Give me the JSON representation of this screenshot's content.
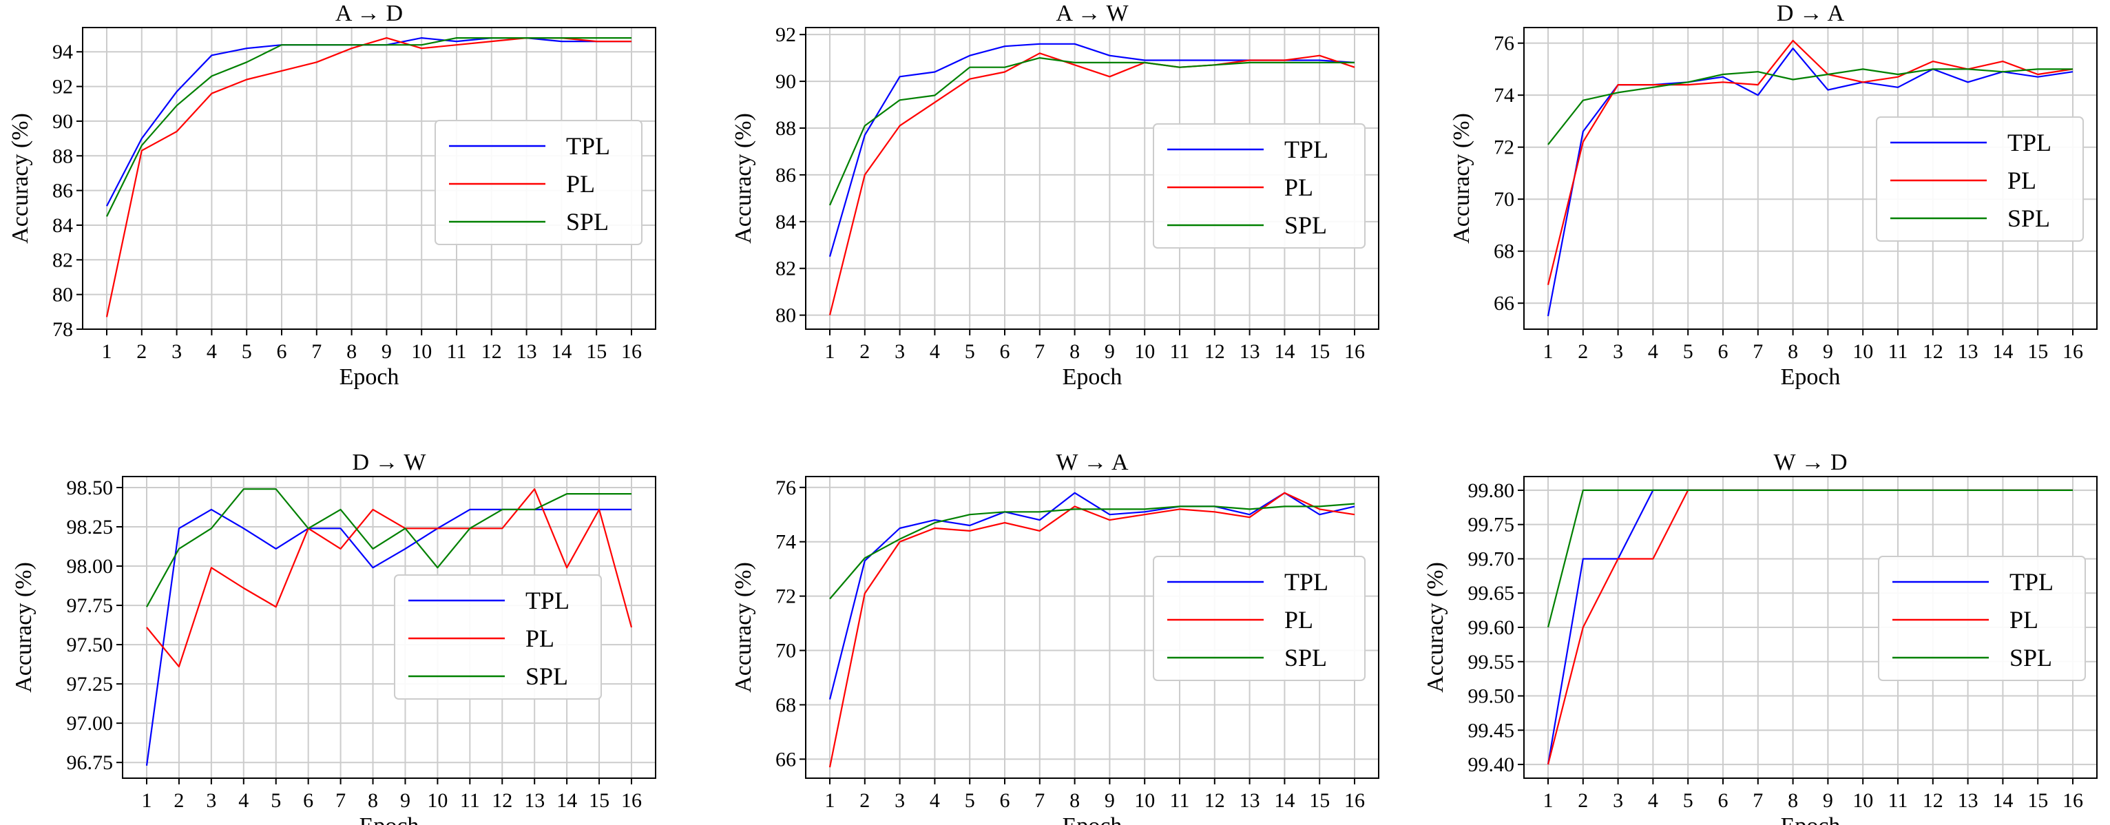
{
  "figure": {
    "series_colors": {
      "TPL": "#0000ff",
      "PL": "#ff0000",
      "SPL": "#008000"
    }
  },
  "chart_data": [
    {
      "type": "line",
      "title": "A → D",
      "xlabel": "Epoch",
      "ylabel": "Accuracy (%)",
      "x": [
        1,
        2,
        3,
        4,
        5,
        6,
        7,
        8,
        9,
        10,
        11,
        12,
        13,
        14,
        15,
        16
      ],
      "ylim": [
        78,
        95.4
      ],
      "yticks": [
        "78",
        "80",
        "82",
        "84",
        "86",
        "88",
        "90",
        "92",
        "94"
      ],
      "grid": true,
      "legend": [
        "TPL",
        "PL",
        "SPL"
      ],
      "series": [
        {
          "name": "TPL",
          "values": [
            85.1,
            89.0,
            91.7,
            93.8,
            94.2,
            94.4,
            94.4,
            94.4,
            94.4,
            94.8,
            94.6,
            94.8,
            94.8,
            94.6,
            94.6,
            94.6
          ]
        },
        {
          "name": "PL",
          "values": [
            78.7,
            88.3,
            89.4,
            91.6,
            92.4,
            92.9,
            93.4,
            94.2,
            94.8,
            94.2,
            94.4,
            94.6,
            94.8,
            94.8,
            94.6,
            94.6
          ]
        },
        {
          "name": "SPL",
          "values": [
            84.5,
            88.6,
            90.9,
            92.6,
            93.4,
            94.4,
            94.4,
            94.4,
            94.4,
            94.4,
            94.8,
            94.8,
            94.8,
            94.8,
            94.8,
            94.8
          ]
        }
      ]
    },
    {
      "type": "line",
      "title": "A → W",
      "xlabel": "Epoch",
      "ylabel": "Accuracy (%)",
      "x": [
        1,
        2,
        3,
        4,
        5,
        6,
        7,
        8,
        9,
        10,
        11,
        12,
        13,
        14,
        15,
        16
      ],
      "ylim": [
        79.4,
        92.3
      ],
      "yticks": [
        "80",
        "82",
        "84",
        "86",
        "88",
        "90",
        "92"
      ],
      "grid": true,
      "legend": [
        "TPL",
        "PL",
        "SPL"
      ],
      "series": [
        {
          "name": "TPL",
          "values": [
            82.5,
            87.7,
            90.2,
            90.4,
            91.1,
            91.5,
            91.6,
            91.6,
            91.1,
            90.9,
            90.9,
            90.9,
            90.9,
            90.9,
            90.9,
            90.8
          ]
        },
        {
          "name": "PL",
          "values": [
            80.0,
            86.0,
            88.1,
            89.1,
            90.1,
            90.4,
            91.2,
            90.7,
            90.2,
            90.8,
            90.6,
            90.7,
            90.9,
            90.9,
            91.1,
            90.6
          ]
        },
        {
          "name": "SPL",
          "values": [
            84.7,
            88.1,
            89.2,
            89.4,
            90.6,
            90.6,
            91.0,
            90.8,
            90.8,
            90.8,
            90.6,
            90.7,
            90.8,
            90.8,
            90.8,
            90.8
          ]
        }
      ]
    },
    {
      "type": "line",
      "title": "D → A",
      "xlabel": "Epoch",
      "ylabel": "Accuracy (%)",
      "x": [
        1,
        2,
        3,
        4,
        5,
        6,
        7,
        8,
        9,
        10,
        11,
        12,
        13,
        14,
        15,
        16
      ],
      "ylim": [
        65.0,
        76.6
      ],
      "yticks": [
        "66",
        "68",
        "70",
        "72",
        "74",
        "76"
      ],
      "grid": true,
      "legend": [
        "TPL",
        "PL",
        "SPL"
      ],
      "series": [
        {
          "name": "TPL",
          "values": [
            65.5,
            72.6,
            74.4,
            74.4,
            74.5,
            74.7,
            74.0,
            75.8,
            74.2,
            74.5,
            74.3,
            75.0,
            74.5,
            74.9,
            74.7,
            74.9
          ]
        },
        {
          "name": "PL",
          "values": [
            66.7,
            72.2,
            74.4,
            74.4,
            74.4,
            74.5,
            74.4,
            76.1,
            74.8,
            74.5,
            74.7,
            75.3,
            75.0,
            75.3,
            74.8,
            75.0
          ]
        },
        {
          "name": "SPL",
          "values": [
            72.1,
            73.8,
            74.1,
            74.3,
            74.5,
            74.8,
            74.9,
            74.6,
            74.8,
            75.0,
            74.8,
            75.0,
            75.0,
            74.9,
            75.0,
            75.0
          ]
        }
      ]
    },
    {
      "type": "line",
      "title": "D → W",
      "xlabel": "Epoch",
      "ylabel": "Accuracy (%)",
      "x": [
        1,
        2,
        3,
        4,
        5,
        6,
        7,
        8,
        9,
        10,
        11,
        12,
        13,
        14,
        15,
        16
      ],
      "ylim": [
        96.65,
        98.57
      ],
      "yticks": [
        "96.75",
        "97.00",
        "97.25",
        "97.50",
        "97.75",
        "98.00",
        "98.25",
        "98.50"
      ],
      "grid": true,
      "legend": [
        "TPL",
        "PL",
        "SPL"
      ],
      "series": [
        {
          "name": "TPL",
          "values": [
            96.73,
            98.24,
            98.36,
            98.24,
            98.11,
            98.24,
            98.24,
            97.99,
            98.11,
            98.24,
            98.36,
            98.36,
            98.36,
            98.36,
            98.36,
            98.36
          ]
        },
        {
          "name": "PL",
          "values": [
            97.61,
            97.36,
            97.99,
            97.86,
            97.74,
            98.24,
            98.11,
            98.36,
            98.24,
            98.24,
            98.24,
            98.24,
            98.49,
            97.99,
            98.36,
            97.61
          ]
        },
        {
          "name": "SPL",
          "values": [
            97.74,
            98.11,
            98.24,
            98.49,
            98.49,
            98.24,
            98.36,
            98.11,
            98.24,
            97.99,
            98.24,
            98.36,
            98.36,
            98.46,
            98.46,
            98.46
          ]
        }
      ]
    },
    {
      "type": "line",
      "title": "W → A",
      "xlabel": "Epoch",
      "ylabel": "Accuracy (%)",
      "x": [
        1,
        2,
        3,
        4,
        5,
        6,
        7,
        8,
        9,
        10,
        11,
        12,
        13,
        14,
        15,
        16
      ],
      "ylim": [
        65.3,
        76.4
      ],
      "yticks": [
        "66",
        "68",
        "70",
        "72",
        "74",
        "76"
      ],
      "grid": true,
      "legend": [
        "TPL",
        "PL",
        "SPL"
      ],
      "series": [
        {
          "name": "TPL",
          "values": [
            68.2,
            73.3,
            74.5,
            74.8,
            74.6,
            75.1,
            74.8,
            75.8,
            75.0,
            75.1,
            75.3,
            75.3,
            75.0,
            75.8,
            75.0,
            75.3
          ]
        },
        {
          "name": "PL",
          "values": [
            65.7,
            72.1,
            74.0,
            74.5,
            74.4,
            74.7,
            74.4,
            75.3,
            74.8,
            75.0,
            75.2,
            75.1,
            74.9,
            75.8,
            75.2,
            75.0
          ]
        },
        {
          "name": "SPL",
          "values": [
            71.9,
            73.4,
            74.1,
            74.7,
            75.0,
            75.1,
            75.1,
            75.2,
            75.2,
            75.2,
            75.3,
            75.3,
            75.2,
            75.3,
            75.3,
            75.4
          ]
        }
      ]
    },
    {
      "type": "line",
      "title": "W → D",
      "xlabel": "Epoch",
      "ylabel": "Accuracy (%)",
      "x": [
        1,
        2,
        3,
        4,
        5,
        6,
        7,
        8,
        9,
        10,
        11,
        12,
        13,
        14,
        15,
        16
      ],
      "ylim": [
        99.38,
        99.82
      ],
      "yticks": [
        "99.40",
        "99.45",
        "99.50",
        "99.55",
        "99.60",
        "99.65",
        "99.70",
        "99.75",
        "99.80"
      ],
      "grid": true,
      "legend": [
        "TPL",
        "PL",
        "SPL"
      ],
      "series": [
        {
          "name": "TPL",
          "values": [
            99.4,
            99.7,
            99.7,
            99.8,
            99.8,
            99.8,
            99.8,
            99.8,
            99.8,
            99.8,
            99.8,
            99.8,
            99.8,
            99.8,
            99.8,
            99.8
          ]
        },
        {
          "name": "PL",
          "values": [
            99.4,
            99.6,
            99.7,
            99.7,
            99.8,
            99.8,
            99.8,
            99.8,
            99.8,
            99.8,
            99.8,
            99.8,
            99.8,
            99.8,
            99.8,
            99.8
          ]
        },
        {
          "name": "SPL",
          "values": [
            99.6,
            99.8,
            99.8,
            99.8,
            99.8,
            99.8,
            99.8,
            99.8,
            99.8,
            99.8,
            99.8,
            99.8,
            99.8,
            99.8,
            99.8,
            99.8
          ]
        }
      ]
    }
  ]
}
